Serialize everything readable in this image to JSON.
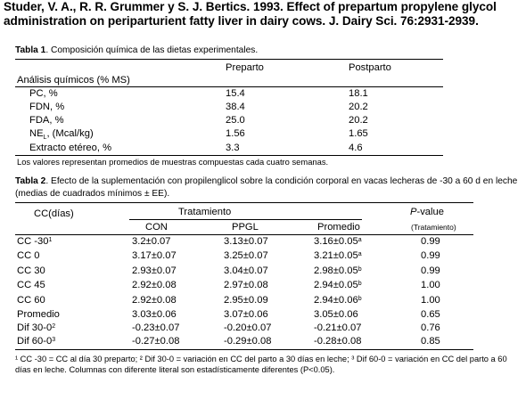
{
  "citation": "Studer, V. A., R. R. Grummer y S. J. Bertics. 1993. Effect of prepartum propylene glycol administration on periparturient fatty liver in dairy cows. J. Dairy Sci. 76:2931-2939.",
  "table1": {
    "label": "Tabla 1",
    "title": ". Composición química de las dietas experimentales.",
    "columns": [
      "Preparto",
      "Postparto"
    ],
    "section": "Análisis químicos (% MS)",
    "rows": [
      {
        "label": "PC, %",
        "preparto": "15.4",
        "postparto": "18.1"
      },
      {
        "label": "FDN, %",
        "preparto": "38.4",
        "postparto": "20.2"
      },
      {
        "label": "FDA, %",
        "preparto": "25.0",
        "postparto": "20.2"
      },
      {
        "label_main": "NE",
        "label_sub": "L",
        "label_rest": ", (Mcal/kg)",
        "preparto": "1.56",
        "postparto": "1.65"
      },
      {
        "label": "Extracto etéreo, %",
        "preparto": "3.3",
        "postparto": "4.6"
      }
    ],
    "note": "Los valores representan promedios de muestras compuestas cada cuatro semanas."
  },
  "table2": {
    "label": "Tabla 2",
    "title": ". Efecto de la suplementación con propilenglicol sobre la condición corporal en vacas lecheras de -30 a 60 d en leche (medias de cuadrados mínimos ± EE).",
    "col_group": "CC(días)",
    "treatment_header": "Tratamiento",
    "columns": [
      "CON",
      "PPGL",
      "Promedio"
    ],
    "pvalue_header": "P",
    "pvalue_header_rest": "-value",
    "pvalue_sub": "(Tratamiento)",
    "rows": [
      {
        "label": "CC -30",
        "sup": "1",
        "con": "3.2±0.07",
        "ppgl": "3.13±0.07",
        "prom": "3.16±0.05",
        "prom_sup": "a",
        "p": "0.99"
      },
      {
        "label": "CC 0",
        "sup": "",
        "con": "3.17±0.07",
        "ppgl": "3.25±0.07",
        "prom": "3.21±0.05",
        "prom_sup": "a",
        "p": "0.99"
      },
      {
        "label": "CC 30",
        "sup": "",
        "con": "2.93±0.07",
        "ppgl": "3.04±0.07",
        "prom": "2.98±0.05",
        "prom_sup": "b",
        "p": "0.99"
      },
      {
        "label": "CC 45",
        "sup": "",
        "con": "2.92±0.08",
        "ppgl": "2.97±0.08",
        "prom": "2.94±0.05",
        "prom_sup": "b",
        "p": "1.00"
      },
      {
        "label": "CC 60",
        "sup": "",
        "con": "2.92±0.08",
        "ppgl": "2.95±0.09",
        "prom": "2.94±0.06",
        "prom_sup": "b",
        "p": "1.00"
      },
      {
        "label": "Promedio",
        "sup": "",
        "con": "3.03±0.06",
        "ppgl": "3.07±0.06",
        "prom": "3.05±0.06",
        "prom_sup": "",
        "p": "0.65"
      },
      {
        "label": "Dif 30-0",
        "sup": "2",
        "con": "-0.23±0.07",
        "ppgl": "-0.20±0.07",
        "prom": "-0.21±0.07",
        "prom_sup": "",
        "p": "0.76"
      },
      {
        "label": "Dif 60-0",
        "sup": "3",
        "con": "-0.27±0.08",
        "ppgl": "-0.29±0.08",
        "prom": "-0.28±0.08",
        "prom_sup": "",
        "p": "0.85"
      }
    ],
    "footnote": "¹ CC -30 = CC al día 30 preparto; ² Dif 30-0 = variación en CC del parto a 30 días en leche; ³ Dif 60-0 = variación en CC del parto a 60 días en leche. Columnas con diferente literal son estadísticamente diferentes (P<0.05)."
  }
}
